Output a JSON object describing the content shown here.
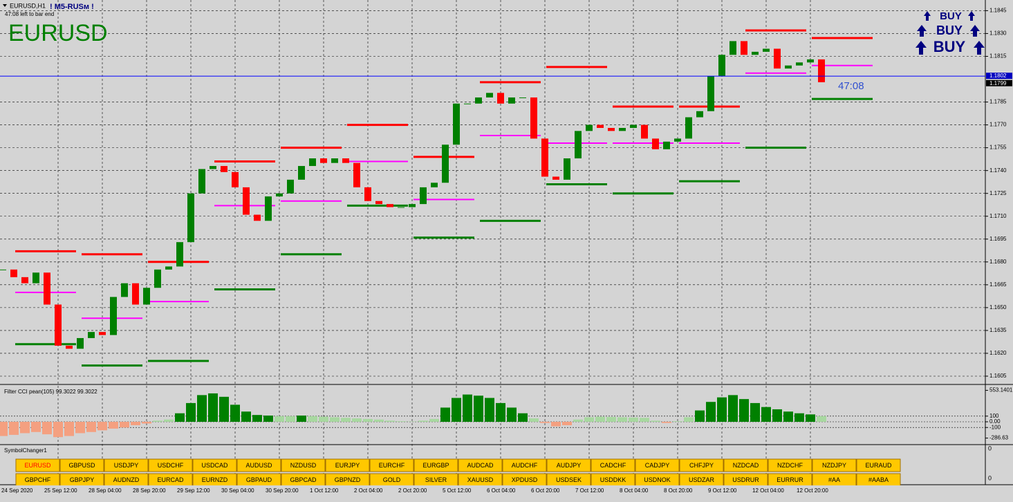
{
  "header": {
    "symbol_period": "EURUSD,H1",
    "tag": "! M5-RUSм !",
    "countdown_note": "47:08 left to bar end",
    "symbol": "EURUSD",
    "signals": [
      "BUY",
      "BUY",
      "BUY"
    ],
    "countdown": "47:08"
  },
  "chart_data": {
    "type": "candlestick",
    "closes": [
      1.1675,
      1.167,
      1.1666,
      1.1673,
      1.1652,
      1.1625,
      1.1623,
      1.163,
      1.1634,
      1.1632,
      1.1657,
      1.1666,
      1.1652,
      1.1663,
      1.1675,
      1.1677,
      1.1693,
      1.1725,
      1.1741,
      1.1743,
      1.1739,
      1.1729,
      1.1711,
      1.1707,
      1.1723,
      1.1725,
      1.1734,
      1.1743,
      1.1748,
      1.1745,
      1.1748,
      1.1745,
      1.1729,
      1.172,
      1.1718,
      1.1716,
      1.1716,
      1.1718,
      1.1729,
      1.1732,
      1.1757,
      1.1784,
      1.1784,
      1.1788,
      1.1791,
      1.1784,
      1.1788,
      1.1788,
      1.1761,
      1.1736,
      1.1734,
      1.1748,
      1.1766,
      1.177,
      1.1768,
      1.1766,
      1.1768,
      1.177,
      1.1761,
      1.1754,
      1.1759,
      1.1761,
      1.1775,
      1.1779,
      1.1802,
      1.1816,
      1.1825,
      1.1816,
      1.1818,
      1.182,
      1.1807,
      1.1809,
      1.1811,
      1.1813,
      1.1798
    ],
    "colors": {
      "up": "#008000",
      "down": "#ff0000"
    },
    "resistance": [
      1.1687,
      1.1685,
      1.168,
      1.1746,
      1.1755,
      1.177,
      1.1749,
      1.1798,
      1.1808,
      1.1782,
      1.1782,
      1.1832,
      1.1827
    ],
    "support": [
      1.1626,
      1.1612,
      1.1615,
      1.1662,
      1.1685,
      1.1717,
      1.1696,
      1.1707,
      1.1731,
      1.1725,
      1.1733,
      1.1755,
      1.1787
    ],
    "pivot": [
      1.166,
      1.1643,
      1.1654,
      1.1717,
      1.172,
      1.1746,
      1.1721,
      1.1763,
      1.1758,
      1.1758,
      1.1758,
      1.1804,
      1.1809
    ],
    "ylim": [
      1.16,
      1.1852
    ],
    "yticks": [
      1.1845,
      {
        "value": 1.183,
        "label": "1.1830"
      },
      1.1815,
      1.1785,
      {
        "value": 1.177,
        "label": "1.1770"
      },
      1.1755,
      {
        "value": 1.174,
        "label": "1.1740"
      },
      1.1725,
      {
        "value": 1.171,
        "label": "1.1710"
      },
      1.1695,
      {
        "value": 1.168,
        "label": "1.1680"
      },
      1.1665,
      {
        "value": 1.165,
        "label": "1.1650"
      },
      1.1635,
      {
        "value": 1.162,
        "label": "1.1620"
      },
      1.1605
    ],
    "price_lines": [
      1.1802,
      1.1799
    ],
    "x_labels": [
      "24 Sep 2020",
      "25 Sep 12:00",
      "28 Sep 04:00",
      "28 Sep 20:00",
      "29 Sep 12:00",
      "30 Sep 04:00",
      "30 Sep 20:00",
      "1 Oct 12:00",
      "2 Oct 04:00",
      "2 Oct 20:00",
      "5 Oct 12:00",
      "6 Oct 04:00",
      "6 Oct 20:00",
      "7 Oct 12:00",
      "8 Oct 04:00",
      "8 Oct 20:00",
      "9 Oct 12:00",
      "12 Oct 04:00",
      "12 Oct 20:00"
    ],
    "grid": true
  },
  "indicator": {
    "type": "bar",
    "title": "Filter CCI pean(105)  99.3022 99.3022",
    "values": [
      -250,
      -230,
      -200,
      -180,
      -220,
      -270,
      -250,
      -200,
      -180,
      -150,
      -120,
      -100,
      -60,
      -30,
      20,
      40,
      150,
      330,
      470,
      500,
      440,
      300,
      180,
      120,
      110,
      100,
      100,
      110,
      100,
      90,
      80,
      70,
      60,
      50,
      40,
      20,
      10,
      5,
      20,
      50,
      250,
      420,
      480,
      460,
      420,
      330,
      250,
      150,
      60,
      -20,
      -80,
      -60,
      40,
      80,
      90,
      85,
      80,
      75,
      70,
      20,
      -20,
      10,
      80,
      200,
      350,
      430,
      470,
      400,
      330,
      260,
      220,
      180,
      150,
      130,
      100
    ],
    "colors": {
      "strong": "#008000",
      "weak": "#a8d8a0",
      "negative": "#f4a080"
    },
    "ylim": [
      -365,
      633
    ],
    "yticks": [
      553.1401,
      100,
      {
        "value": 0,
        "label": "0.00"
      },
      -100,
      -286.63
    ]
  },
  "symbol_changer": {
    "title": "SymbolChanger1",
    "rows": [
      [
        "EURUSD",
        "GBPUSD",
        "USDJPY",
        "USDCHF",
        "USDCAD",
        "AUDUSD",
        "NZDUSD",
        "EURJPY",
        "EURCHF",
        "EURGBP",
        "AUDCAD",
        "AUDCHF",
        "AUDJPY",
        "CADCHF",
        "CADJPY",
        "CHFJPY",
        "NZDCAD",
        "NZDCHF",
        "NZDJPY",
        "EURAUD"
      ],
      [
        "GBPCHF",
        "GBPJPY",
        "AUDNZD",
        "EURCAD",
        "EURNZD",
        "GBPAUD",
        "GBPCAD",
        "GBPNZD",
        "GOLD",
        "SILVER",
        "XAUUSD",
        "XPDUSD",
        "USDSEK",
        "USDDKK",
        "USDNOK",
        "USDZAR",
        "USDRUR",
        "EURRUR",
        "#AA",
        "#AABA"
      ]
    ],
    "axis_labels": [
      "0",
      "0"
    ]
  }
}
